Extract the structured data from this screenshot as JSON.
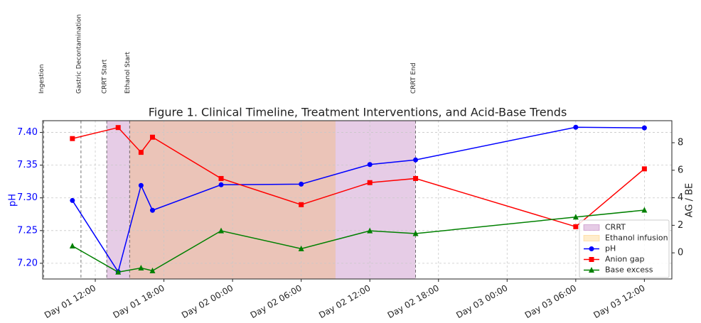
{
  "chart_data": {
    "type": "line",
    "title": "Figure 1. Clinical Timeline, Treatment Interventions, and Acid-Base Trends",
    "ylabel": "pH",
    "y2label": "AG / BE",
    "x": [
      10,
      14,
      16,
      17,
      23,
      30,
      36,
      40,
      54,
      60
    ],
    "xlim": [
      7.4,
      62.4
    ],
    "xticks": [
      {
        "value": 12,
        "label": "Day 01 12:00"
      },
      {
        "value": 18,
        "label": "Day 01 18:00"
      },
      {
        "value": 24,
        "label": "Day 02 00:00"
      },
      {
        "value": 30,
        "label": "Day 02 06:00"
      },
      {
        "value": 36,
        "label": "Day 02 12:00"
      },
      {
        "value": 42,
        "label": "Day 02 18:00"
      },
      {
        "value": 48,
        "label": "Day 03 00:00"
      },
      {
        "value": 54,
        "label": "Day 03 06:00"
      },
      {
        "value": 60,
        "label": "Day 03 12:00"
      }
    ],
    "ylim": [
      7.176,
      7.418
    ],
    "yticks": [
      {
        "value": 7.2,
        "label": "7.20"
      },
      7.25,
      {
        "value": 7.3,
        "label": "7.30"
      },
      7.35,
      {
        "value": 7.4,
        "label": "7.40"
      }
    ],
    "y2lim": [
      -1.9,
      9.6
    ],
    "y2ticks": [
      0,
      2,
      4,
      6,
      8
    ],
    "grid": true,
    "legend": "lower right",
    "spans": [
      {
        "name": "CRRT",
        "start": 13,
        "end": 40,
        "color": "#800080"
      },
      {
        "name": "Ethanol infusion",
        "start": 15,
        "end": 33,
        "color": "#ffa500"
      }
    ],
    "series": [
      {
        "name": "pH",
        "color": "#0000ff",
        "marker": "circle",
        "values": [
          7.296,
          7.187,
          7.319,
          7.281,
          7.32,
          7.321,
          7.351,
          7.358,
          7.408,
          7.407
        ]
      },
      {
        "name": "Anion gap",
        "color": "#ff0000",
        "marker": "square",
        "axis": "y2",
        "values": [
          8.3,
          9.1,
          7.3,
          8.4,
          5.4,
          3.5,
          5.1,
          5.4,
          1.9,
          6.1
        ]
      },
      {
        "name": "Base excess",
        "color": "#008000",
        "marker": "triangle",
        "axis": "y2",
        "values": [
          0.5,
          -1.4,
          -1.1,
          -1.3,
          1.6,
          0.3,
          1.6,
          1.4,
          2.6,
          3.1
        ]
      }
    ],
    "events": [
      {
        "label": "Ingestion",
        "x": 7.5
      },
      {
        "label": "Gastric Decontamination",
        "x": 10.75
      },
      {
        "label": "CRRT Start",
        "x": 13
      },
      {
        "label": "Ethanol Start",
        "x": 15
      },
      {
        "label": "CRRT End",
        "x": 40
      }
    ]
  }
}
